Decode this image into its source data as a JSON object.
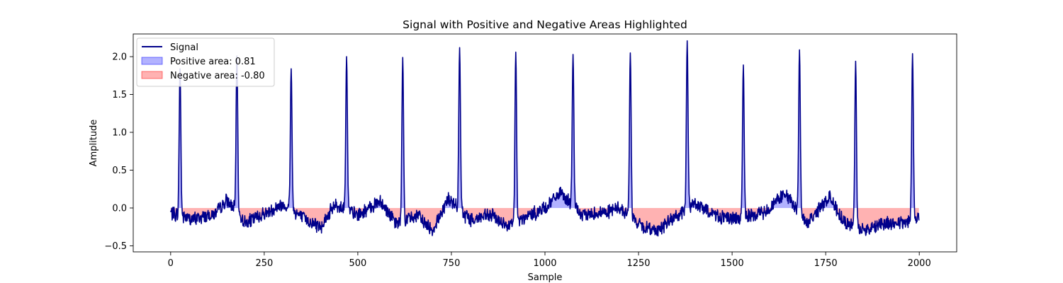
{
  "chart_data": {
    "type": "line",
    "title": "Signal with Positive and Negative Areas Highlighted",
    "xlabel": "Sample",
    "ylabel": "Amplitude",
    "xlim": [
      -100,
      2100
    ],
    "ylim": [
      -0.58,
      2.3
    ],
    "xticks": [
      0,
      250,
      500,
      750,
      1000,
      1250,
      1500,
      1750,
      2000
    ],
    "yticks": [
      -0.5,
      0.0,
      0.5,
      1.0,
      1.5,
      2.0
    ],
    "grid": false,
    "legend_position": "top-left",
    "series": [
      {
        "name": "Signal",
        "color": "#00008b",
        "peak_samples": [
          25,
          177,
          322,
          470,
          620,
          772,
          922,
          1075,
          1228,
          1380,
          1530,
          1680,
          1830,
          1982
        ],
        "peak_values": [
          1.82,
          1.99,
          1.82,
          1.98,
          1.97,
          2.1,
          2.04,
          2.01,
          2.03,
          2.19,
          1.87,
          2.07,
          1.92,
          2.02
        ],
        "baseline_x": [
          0,
          60,
          120,
          150,
          200,
          260,
          300,
          360,
          400,
          440,
          500,
          560,
          600,
          660,
          700,
          740,
          800,
          860,
          900,
          960,
          1000,
          1040,
          1100,
          1160,
          1200,
          1260,
          1300,
          1340,
          1400,
          1460,
          1500,
          1560,
          1600,
          1640,
          1700,
          1760,
          1800,
          1860,
          1900,
          1960,
          2000
        ],
        "baseline_y": [
          -0.07,
          -0.15,
          -0.08,
          0.1,
          -0.2,
          -0.05,
          0.05,
          -0.15,
          -0.25,
          0.05,
          -0.1,
          0.1,
          -0.2,
          -0.1,
          -0.3,
          0.12,
          -0.15,
          -0.1,
          -0.25,
          -0.1,
          0.0,
          0.2,
          -0.1,
          -0.05,
          0.0,
          -0.25,
          -0.3,
          -0.15,
          0.05,
          -0.1,
          -0.15,
          -0.1,
          0.0,
          0.2,
          -0.2,
          0.15,
          -0.2,
          -0.3,
          -0.2,
          -0.2,
          -0.1
        ]
      }
    ],
    "fills": [
      {
        "name": "Positive area: 0.81",
        "color": "#0000ff",
        "opacity": 0.3
      },
      {
        "name": "Negative area: -0.80",
        "color": "#ff0000",
        "opacity": 0.3
      }
    ]
  }
}
